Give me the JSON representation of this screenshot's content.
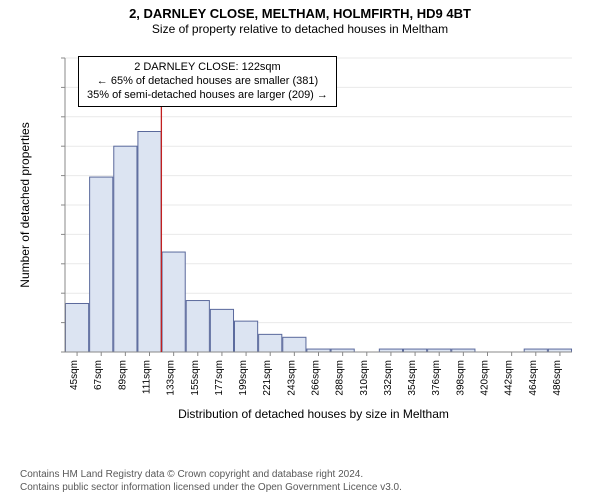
{
  "title_main": "2, DARNLEY CLOSE, MELTHAM, HOLMFIRTH, HD9 4BT",
  "title_sub": "Size of property relative to detached houses in Meltham",
  "chart": {
    "type": "histogram",
    "ylabel": "Number of detached properties",
    "xlabel": "Distribution of detached houses by size in Meltham",
    "y": {
      "min": 0,
      "max": 200,
      "step": 20
    },
    "x_categories": [
      "45sqm",
      "67sqm",
      "89sqm",
      "111sqm",
      "133sqm",
      "155sqm",
      "177sqm",
      "199sqm",
      "221sqm",
      "243sqm",
      "266sqm",
      "288sqm",
      "310sqm",
      "332sqm",
      "354sqm",
      "376sqm",
      "398sqm",
      "420sqm",
      "442sqm",
      "464sqm",
      "486sqm"
    ],
    "values": [
      33,
      119,
      140,
      150,
      68,
      35,
      29,
      21,
      12,
      10,
      2,
      2,
      0,
      2,
      2,
      2,
      2,
      0,
      0,
      2,
      2
    ],
    "bar_fill": "#dce4f2",
    "bar_stroke": "#5a699c",
    "grid_color": "#e9e9e9",
    "axis_color": "#888888",
    "background": "#ffffff",
    "marker": {
      "x_value": 122,
      "color": "#c22020"
    }
  },
  "info_box": {
    "line1": "2 DARNLEY CLOSE: 122sqm",
    "line2": "← 65% of detached houses are smaller (381)",
    "line3": "35% of semi-detached houses are larger (209) →"
  },
  "footer": {
    "line1": "Contains HM Land Registry data © Crown copyright and database right 2024.",
    "line2": "Contains public sector information licensed under the Open Government Licence v3.0."
  },
  "fonts": {
    "title_main_size": 13,
    "title_sub_size": 12,
    "tick_size": 10,
    "label_size": 12,
    "info_size": 11,
    "footer_size": 10
  }
}
